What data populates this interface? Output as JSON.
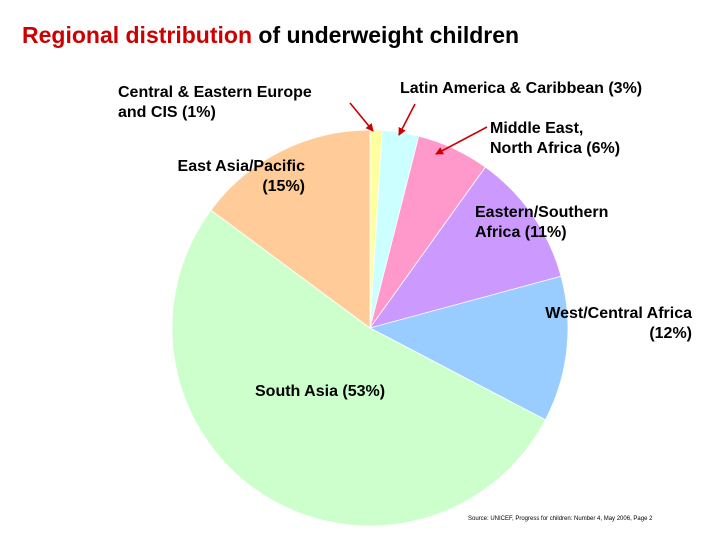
{
  "title": {
    "part1": "Regional distribution",
    "part2": " of underweight children"
  },
  "chart_data": {
    "type": "pie",
    "title": "Regional distribution of underweight children",
    "slices": [
      {
        "key": "cee",
        "label_lines": [
          "Central & Eastern Europe",
          "and CIS (1%)"
        ],
        "value": 1,
        "color": "#ffffa0"
      },
      {
        "key": "lac",
        "label_lines": [
          "Latin America & Caribbean (3%)"
        ],
        "value": 3,
        "color": "#ccffff"
      },
      {
        "key": "mena",
        "label_lines": [
          "Middle East,",
          "North Africa (6%)"
        ],
        "value": 6,
        "color": "#ff99cc"
      },
      {
        "key": "esa",
        "label_lines": [
          "Eastern/Southern",
          "Africa (11%)"
        ],
        "value": 11,
        "color": "#cc99ff"
      },
      {
        "key": "wca",
        "label_lines": [
          "West/Central Africa",
          "(12%)"
        ],
        "value": 12,
        "color": "#99ccff"
      },
      {
        "key": "sa",
        "label_lines": [
          "South Asia (53%)"
        ],
        "value": 53,
        "color": "#ccffcc"
      },
      {
        "key": "eap",
        "label_lines": [
          "East Asia/Pacific",
          "(15%)"
        ],
        "value": 15,
        "color": "#ffcc99"
      }
    ],
    "start_position": "12 o'clock",
    "direction": "clockwise",
    "arrow_color": "#cc0000"
  },
  "source": "Source: UNICEF, Progress for children: Number 4, May 2006, Page 2"
}
